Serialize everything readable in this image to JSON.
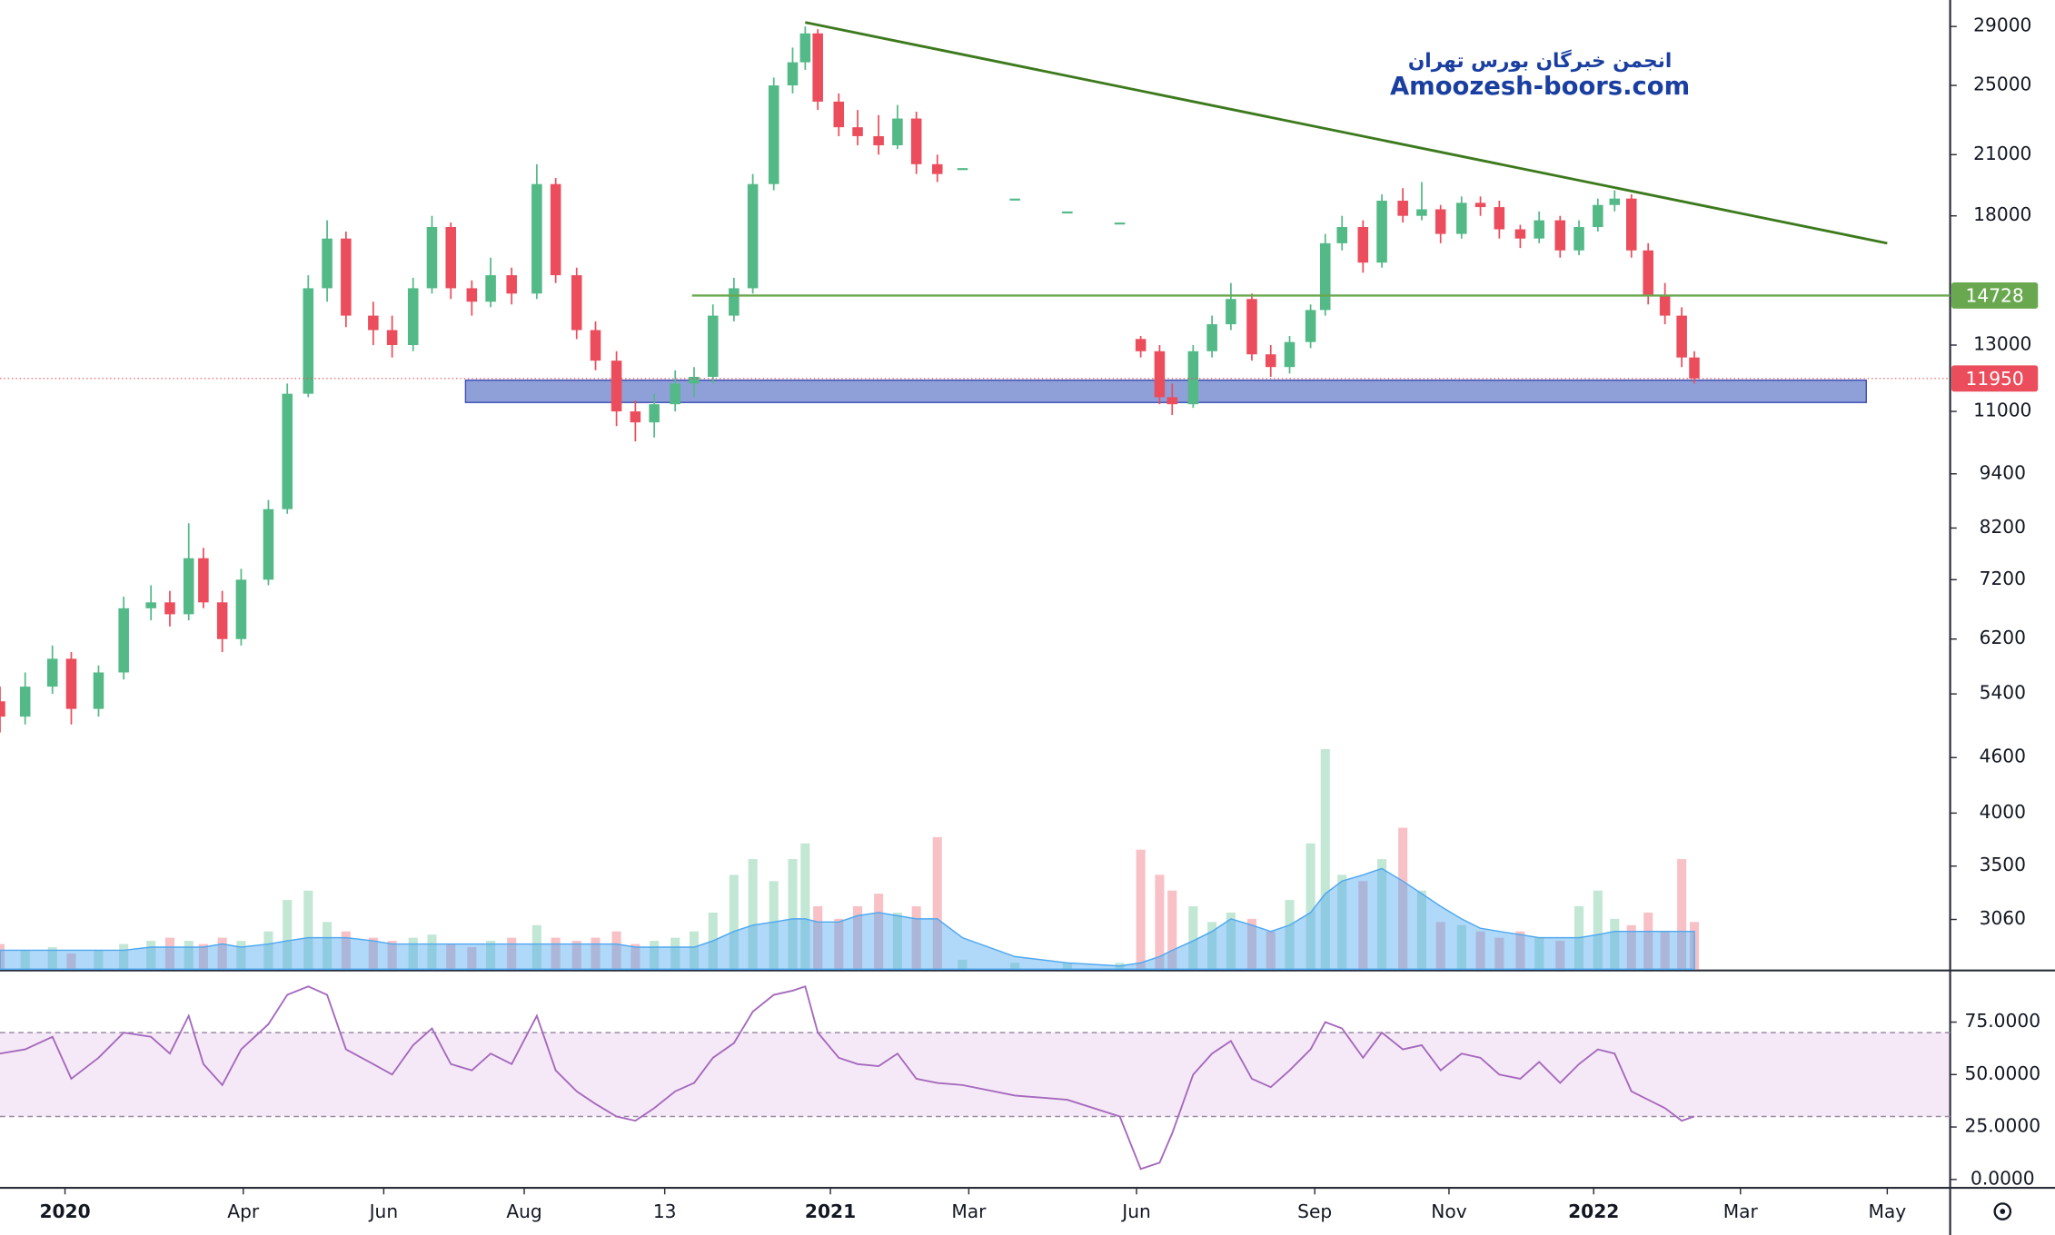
{
  "watermark": {
    "line1": "انجمن خبرگان بورس تهران",
    "line2": "Amoozesh-boors.com"
  },
  "chart_data": [
    {
      "type": "candlestick",
      "log": true,
      "grid": false,
      "up_color": "#53b987",
      "down_color": "#eb4d5c",
      "xlim": [
        -31,
        899
      ],
      "ylim": [
        2700,
        31000
      ],
      "vlim": [
        0,
        100
      ],
      "xticks": [
        {
          "value": 0,
          "label": "2020"
        },
        {
          "value": 85,
          "label": "Apr"
        },
        {
          "value": 152,
          "label": "Jun"
        },
        {
          "value": 219,
          "label": "Aug"
        },
        {
          "value": 286,
          "label": "13"
        },
        {
          "value": 365,
          "label": "2021"
        },
        {
          "value": 431,
          "label": "Mar"
        },
        {
          "value": 511,
          "label": "Jun"
        },
        {
          "value": 596,
          "label": "Sep"
        },
        {
          "value": 660,
          "label": "Nov"
        },
        {
          "value": 729,
          "label": "2022"
        },
        {
          "value": 799,
          "label": "Mar"
        },
        {
          "value": 869,
          "label": "May"
        }
      ],
      "yticks": [
        29000,
        25000,
        21000,
        18000,
        13000,
        11000,
        9400,
        8200,
        7200,
        6200,
        5400,
        4600,
        4000,
        3500,
        3060
      ],
      "x": [
        -31,
        -19,
        -6,
        3,
        16,
        28,
        41,
        50,
        59,
        66,
        75,
        84,
        97,
        106,
        116,
        125,
        134,
        147,
        156,
        166,
        175,
        184,
        194,
        203,
        213,
        225,
        234,
        244,
        253,
        263,
        272,
        281,
        291,
        300,
        309,
        319,
        328,
        338,
        347,
        353,
        359,
        369,
        378,
        388,
        397,
        406,
        416,
        428,
        453,
        478,
        503,
        513,
        522,
        528,
        538,
        547,
        556,
        566,
        575,
        584,
        594,
        601,
        609,
        619,
        628,
        638,
        647,
        656,
        666,
        675,
        684,
        694,
        703,
        713,
        722,
        731,
        739,
        747,
        755,
        763,
        771,
        777
      ],
      "open": [
        5300,
        5100,
        5500,
        5900,
        5200,
        5700,
        6700,
        6800,
        6600,
        7600,
        6800,
        6200,
        7200,
        8600,
        11500,
        15000,
        17000,
        14000,
        13500,
        13000,
        15000,
        17500,
        15000,
        14500,
        15500,
        14800,
        19500,
        15500,
        13500,
        12500,
        11000,
        10700,
        11200,
        11800,
        12000,
        14000,
        15000,
        19500,
        25000,
        26500,
        28500,
        24000,
        22500,
        22000,
        21500,
        23000,
        20500,
        20300,
        18800,
        18200,
        17700,
        13200,
        12800,
        11400,
        11200,
        12800,
        13700,
        14600,
        12700,
        12300,
        13100,
        14200,
        16800,
        17500,
        16000,
        18700,
        18000,
        18300,
        17200,
        18600,
        18400,
        17400,
        17000,
        17800,
        16500,
        17500,
        18500,
        18800,
        16500,
        14700,
        14000,
        12600
      ],
      "high": [
        5500,
        5700,
        6100,
        6000,
        5800,
        6900,
        7100,
        7000,
        8300,
        7800,
        7000,
        7400,
        8800,
        11800,
        15500,
        17800,
        17300,
        14500,
        14000,
        15400,
        18000,
        17700,
        15300,
        16200,
        15800,
        20500,
        19800,
        15800,
        13800,
        12800,
        11300,
        11500,
        12200,
        12300,
        14400,
        15400,
        20000,
        25500,
        27500,
        29000,
        28800,
        24500,
        23500,
        23200,
        23800,
        23400,
        21000,
        20300,
        18800,
        18200,
        17700,
        13300,
        13000,
        11800,
        13000,
        14000,
        15200,
        14800,
        13000,
        13300,
        14400,
        17200,
        18000,
        17800,
        19000,
        19300,
        19600,
        18500,
        18900,
        18900,
        18700,
        17600,
        18200,
        18000,
        17800,
        18800,
        19200,
        19000,
        16800,
        15200,
        14300,
        12800
      ],
      "low": [
        4900,
        5000,
        5400,
        5000,
        5100,
        5600,
        6500,
        6400,
        6500,
        6700,
        6000,
        6100,
        7100,
        8500,
        11400,
        14500,
        13600,
        13000,
        12600,
        12800,
        14800,
        14600,
        14000,
        14300,
        14400,
        14600,
        15200,
        13200,
        12200,
        10600,
        10200,
        10300,
        11000,
        11400,
        11800,
        13800,
        14800,
        19200,
        24500,
        26000,
        23500,
        22000,
        21500,
        21000,
        21300,
        20000,
        19600,
        20300,
        18800,
        18200,
        17700,
        12600,
        11200,
        10900,
        11100,
        12600,
        13500,
        12500,
        12000,
        12100,
        12900,
        14000,
        16500,
        15600,
        15800,
        17700,
        17800,
        16800,
        17000,
        18000,
        17000,
        16600,
        16800,
        16200,
        16300,
        17300,
        18200,
        16200,
        14400,
        13700,
        12300,
        11800
      ],
      "close": [
        5100,
        5500,
        5900,
        5200,
        5700,
        6700,
        6800,
        6600,
        7600,
        6800,
        6200,
        7200,
        8600,
        11500,
        15000,
        17000,
        14000,
        13500,
        13000,
        15000,
        17500,
        15000,
        14500,
        15500,
        14800,
        19500,
        15500,
        13500,
        12500,
        11000,
        10700,
        11200,
        11800,
        12000,
        14000,
        15000,
        19500,
        25000,
        26500,
        28500,
        24000,
        22500,
        22000,
        21500,
        23000,
        20500,
        20000,
        20300,
        18800,
        18200,
        17700,
        12800,
        11400,
        11200,
        12800,
        13700,
        14600,
        12700,
        12300,
        13100,
        14200,
        16800,
        17500,
        16000,
        18700,
        18000,
        18300,
        17200,
        18600,
        18400,
        17400,
        17000,
        17800,
        16500,
        17500,
        18500,
        18800,
        16500,
        14700,
        14000,
        12600,
        11950
      ],
      "volume": [
        8,
        6,
        7,
        5,
        6,
        8,
        9,
        10,
        9,
        8,
        10,
        9,
        12,
        22,
        25,
        15,
        12,
        10,
        9,
        10,
        11,
        8,
        7,
        9,
        10,
        14,
        10,
        9,
        10,
        12,
        8,
        9,
        10,
        12,
        18,
        30,
        35,
        28,
        35,
        40,
        20,
        16,
        20,
        24,
        18,
        20,
        42,
        3,
        2,
        2,
        2,
        38,
        30,
        25,
        20,
        15,
        18,
        16,
        12,
        22,
        40,
        70,
        30,
        28,
        35,
        45,
        25,
        15,
        14,
        12,
        10,
        12,
        10,
        9,
        20,
        25,
        16,
        14,
        18,
        12,
        35,
        15
      ],
      "volume_ma": [
        6,
        6,
        6,
        6,
        6,
        6,
        7,
        7,
        7,
        7,
        8,
        7,
        8,
        9,
        10,
        10,
        10,
        9,
        8,
        8,
        8,
        8,
        8,
        8,
        8,
        8,
        8,
        8,
        8,
        8,
        7,
        7,
        7,
        7,
        9,
        12,
        14,
        15,
        16,
        16,
        15,
        15,
        17,
        18,
        17,
        16,
        16,
        10,
        4,
        2,
        1,
        2,
        4,
        6,
        9,
        12,
        16,
        14,
        12,
        14,
        18,
        24,
        28,
        30,
        32,
        28,
        24,
        20,
        16,
        13,
        12,
        11,
        10,
        10,
        10,
        11,
        12,
        12,
        12,
        12,
        12,
        12
      ],
      "trendline": {
        "x": [
          353,
          869
        ],
        "y": [
          29300,
          16800
        ],
        "color": "#3d7a1e"
      },
      "level": {
        "value": 14728,
        "x": 299,
        "color": "#6aa84f"
      },
      "zone": {
        "x": [
          191,
          859
        ],
        "y": [
          11250,
          11900
        ],
        "color": "#7b8fd1"
      },
      "last_price": {
        "value": 11950,
        "color": "#eb4d5c"
      }
    },
    {
      "type": "line",
      "name": "RSI",
      "color": "#a569bd",
      "ylim": [
        -4,
        99
      ],
      "band": [
        30,
        70
      ],
      "yticks": [
        {
          "value": 75,
          "label": "75.0000"
        },
        {
          "value": 50,
          "label": "50.0000"
        },
        {
          "value": 25,
          "label": "25.0000"
        },
        {
          "value": 0,
          "label": "0.0000"
        }
      ],
      "values": [
        60,
        62,
        68,
        48,
        58,
        70,
        68,
        60,
        78,
        55,
        45,
        62,
        74,
        88,
        92,
        88,
        62,
        55,
        50,
        64,
        72,
        55,
        52,
        60,
        55,
        78,
        52,
        42,
        36,
        30,
        28,
        34,
        42,
        46,
        58,
        65,
        80,
        88,
        90,
        92,
        70,
        58,
        55,
        54,
        60,
        48,
        46,
        45,
        40,
        38,
        30,
        5,
        8,
        22,
        50,
        60,
        66,
        48,
        44,
        52,
        62,
        75,
        72,
        58,
        70,
        62,
        64,
        52,
        60,
        58,
        50,
        48,
        56,
        46,
        55,
        62,
        60,
        42,
        38,
        34,
        28,
        30
      ]
    }
  ]
}
